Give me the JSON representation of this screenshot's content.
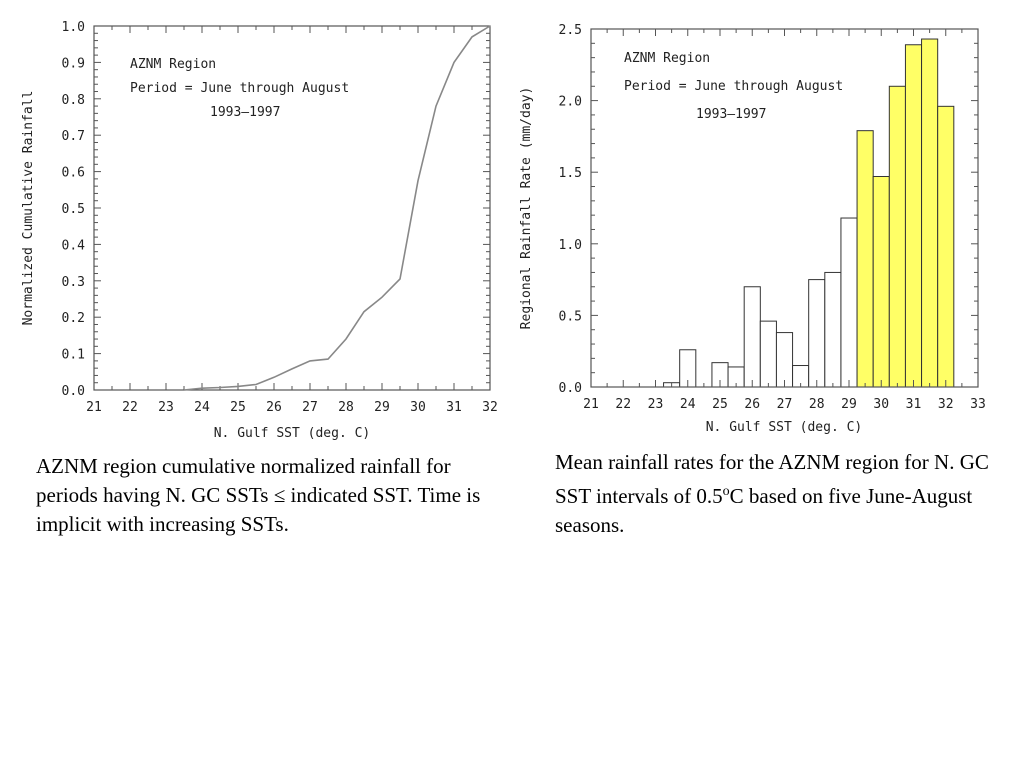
{
  "chart_data": [
    {
      "type": "line",
      "annotation_lines": [
        "AZNM Region",
        "Period = June through August",
        "1993–1997"
      ],
      "xlabel": "N. Gulf SST (deg. C)",
      "ylabel": "Normalized Cumulative Rainfall",
      "xlim": [
        21,
        32
      ],
      "ylim": [
        0,
        1
      ],
      "x_ticks": [
        21,
        22,
        23,
        24,
        25,
        26,
        27,
        28,
        29,
        30,
        31,
        32
      ],
      "y_ticks": [
        "0.0",
        "0.1",
        "0.2",
        "0.3",
        "0.4",
        "0.5",
        "0.6",
        "0.7",
        "0.8",
        "0.9",
        "1.0"
      ],
      "grid": false,
      "line_color": "#888888",
      "x": [
        23.5,
        24.0,
        24.5,
        25.0,
        25.5,
        26.0,
        26.5,
        27.0,
        27.5,
        28.0,
        28.5,
        29.0,
        29.5,
        30.0,
        30.5,
        31.0,
        31.5,
        32.0
      ],
      "y": [
        0.0,
        0.005,
        0.007,
        0.01,
        0.015,
        0.035,
        0.058,
        0.08,
        0.085,
        0.14,
        0.215,
        0.255,
        0.305,
        0.575,
        0.78,
        0.9,
        0.97,
        1.0
      ]
    },
    {
      "type": "bar",
      "annotation_lines": [
        "AZNM Region",
        "Period = June through August",
        "1993–1997"
      ],
      "xlabel": "N. Gulf SST (deg. C)",
      "ylabel": "Regional Rainfall Rate (mm/day)",
      "xlim": [
        21,
        33
      ],
      "ylim": [
        0,
        2.5
      ],
      "x_ticks": [
        21,
        22,
        23,
        24,
        25,
        26,
        27,
        28,
        29,
        30,
        31,
        32,
        33
      ],
      "y_ticks": [
        "0.0",
        "0.5",
        "1.0",
        "1.5",
        "2.0",
        "2.5"
      ],
      "grid": false,
      "bin_width": 0.5,
      "highlight_from": 29.25,
      "highlight_color": "#ffff66",
      "bar_color": "#ffffff",
      "bins": [
        {
          "x": 23.5,
          "value": 0.03
        },
        {
          "x": 24.0,
          "value": 0.26
        },
        {
          "x": 25.0,
          "value": 0.17
        },
        {
          "x": 25.5,
          "value": 0.14
        },
        {
          "x": 26.0,
          "value": 0.7
        },
        {
          "x": 26.5,
          "value": 0.46
        },
        {
          "x": 27.0,
          "value": 0.38
        },
        {
          "x": 27.5,
          "value": 0.15
        },
        {
          "x": 28.0,
          "value": 0.75
        },
        {
          "x": 28.5,
          "value": 0.8
        },
        {
          "x": 29.0,
          "value": 1.18
        },
        {
          "x": 29.5,
          "value": 1.79
        },
        {
          "x": 30.0,
          "value": 1.47
        },
        {
          "x": 30.5,
          "value": 2.1
        },
        {
          "x": 31.0,
          "value": 2.39
        },
        {
          "x": 31.5,
          "value": 2.43
        },
        {
          "x": 32.0,
          "value": 1.96
        }
      ]
    }
  ],
  "captions": {
    "left": "AZNM region cumulative normalized rainfall for periods having N. GC SSTs ≤ indicated SST.  Time is implicit with increasing SSTs.",
    "right_part1": "Mean rainfall rates for the AZNM region for N. GC SST intervals of 0.5",
    "right_sup": "o",
    "right_part2": "C based on five June-August seasons."
  }
}
